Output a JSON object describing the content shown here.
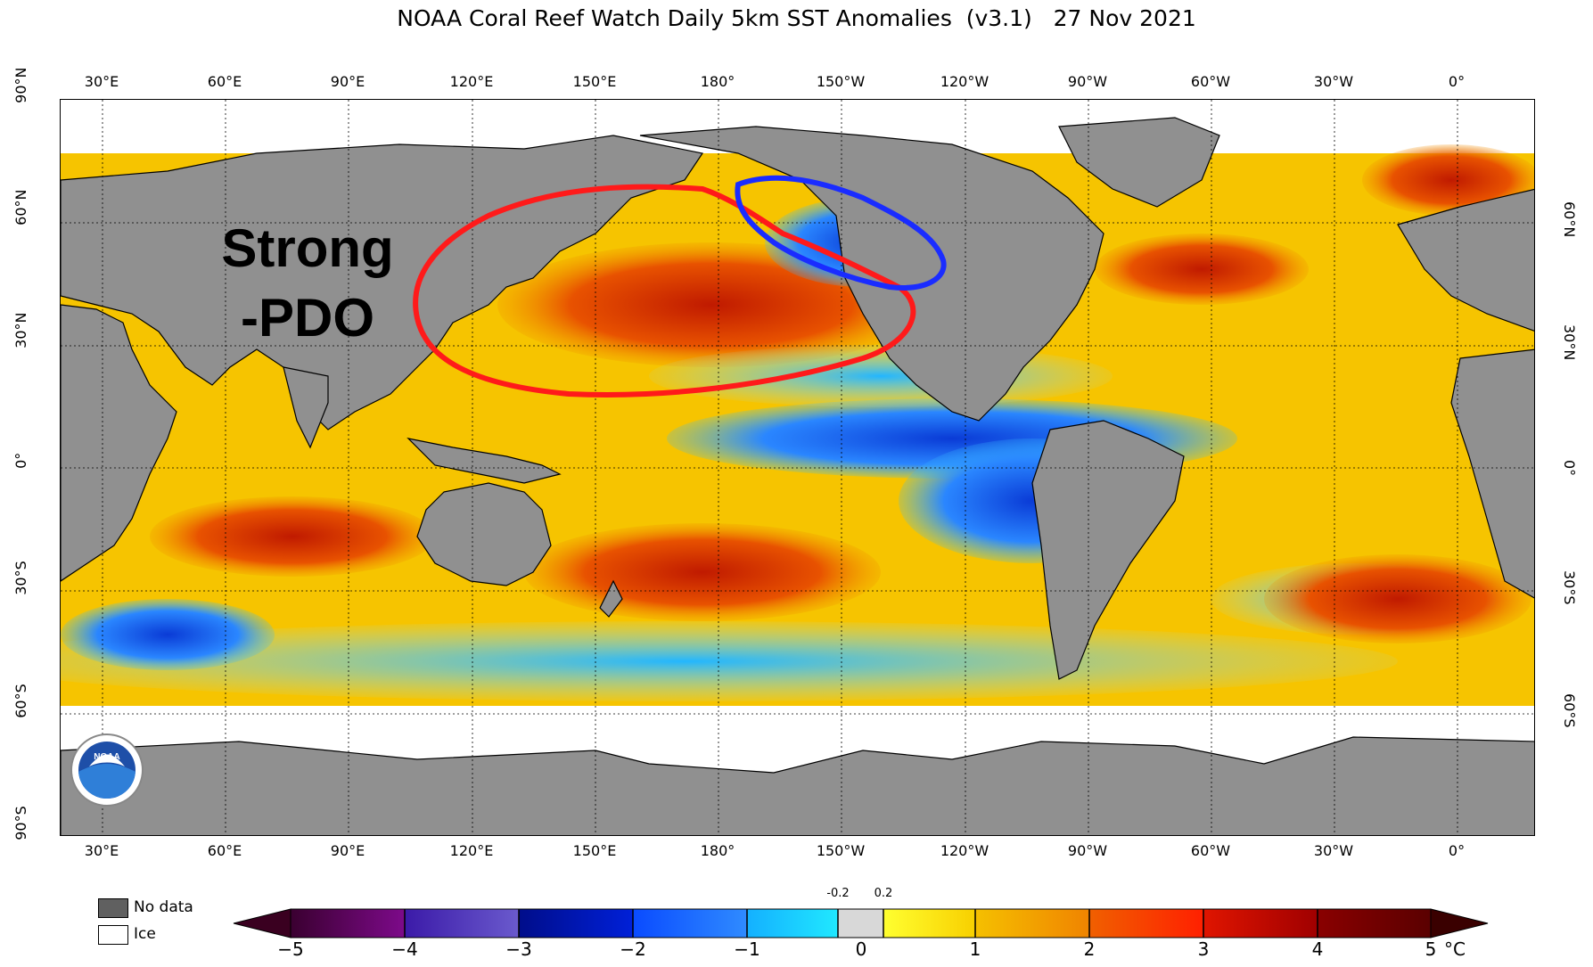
{
  "title": "NOAA Coral Reef Watch Daily 5km SST Anomalies  (v3.1)   27 Nov 2021",
  "lon_ticks": [
    "30°E",
    "60°E",
    "90°E",
    "120°E",
    "150°E",
    "180°",
    "150°W",
    "120°W",
    "90°W",
    "60°W",
    "30°W",
    "0°"
  ],
  "lat_ticks_left": [
    "90°N",
    "60°N",
    "30°N",
    "0°",
    "30°S",
    "60°S",
    "90°S"
  ],
  "lat_ticks_right": [
    "60°N",
    "30°N",
    "0°",
    "30°S",
    "60°S"
  ],
  "annotation": {
    "line1": "Strong",
    "line2": "-PDO"
  },
  "legend": {
    "no_data": "No data",
    "ice": "Ice",
    "no_data_color": "#606060",
    "ice_color": "#ffffff"
  },
  "colorbar": {
    "ticks": [
      "−5",
      "−4",
      "−3",
      "−2",
      "−1",
      "0",
      "1",
      "2",
      "3",
      "4",
      "5"
    ],
    "small_ticks": [
      "-0.2",
      "0.2"
    ],
    "unit": "°C"
  },
  "colors": {
    "land": "#909090",
    "warm": "#f5c400",
    "hot": "#e23a00",
    "cool": "#2b7bff",
    "red_outline": "#ff1a1a",
    "blue_outline": "#1a2cff"
  }
}
